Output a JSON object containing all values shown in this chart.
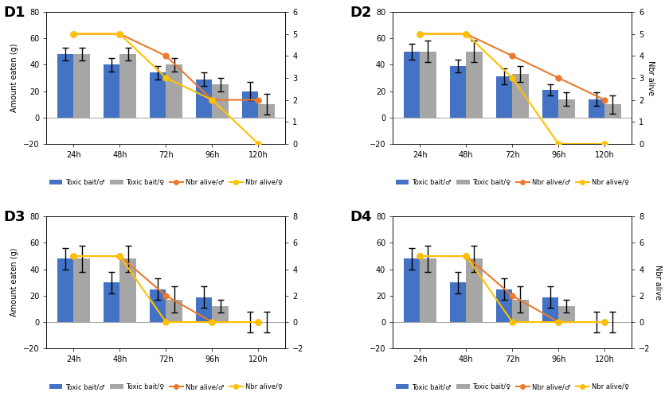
{
  "panels": [
    {
      "label": "D1",
      "xlabels": [
        "24h",
        "48h",
        "72h",
        "96h",
        "120h"
      ],
      "blue_bars": [
        48,
        40,
        34,
        29,
        20
      ],
      "blue_err": [
        5,
        5,
        5,
        5,
        7
      ],
      "gray_bars": [
        48,
        48,
        40,
        25,
        10
      ],
      "gray_err": [
        5,
        5,
        5,
        5,
        8
      ],
      "orange_line": [
        5,
        5,
        4,
        2,
        2
      ],
      "yellow_line": [
        5,
        5,
        3,
        2,
        0
      ],
      "ylim_left": [
        -20,
        80
      ],
      "ylim_right": [
        0,
        6
      ],
      "yticks_right": [
        0,
        1,
        2,
        3,
        4,
        5,
        6
      ],
      "yticks_left": [
        -20,
        0,
        20,
        40,
        60,
        80
      ]
    },
    {
      "label": "D2",
      "xlabels": [
        "24h",
        "48h",
        "72h",
        "96h",
        "120h"
      ],
      "blue_bars": [
        50,
        39,
        31,
        21,
        14
      ],
      "blue_err": [
        6,
        5,
        6,
        4,
        5
      ],
      "gray_bars": [
        50,
        50,
        33,
        14,
        10
      ],
      "gray_err": [
        8,
        8,
        6,
        5,
        7
      ],
      "orange_line": [
        5,
        5,
        4,
        3,
        2
      ],
      "yellow_line": [
        5,
        5,
        3,
        0,
        0
      ],
      "ylim_left": [
        -20,
        80
      ],
      "ylim_right": [
        0,
        6
      ],
      "yticks_right": [
        0,
        1,
        2,
        3,
        4,
        5,
        6
      ],
      "yticks_left": [
        -20,
        0,
        20,
        40,
        60,
        80
      ]
    },
    {
      "label": "D3",
      "xlabels": [
        "24h",
        "48h",
        "72h",
        "96h",
        "120h"
      ],
      "blue_bars": [
        48,
        30,
        25,
        19,
        0
      ],
      "blue_err": [
        8,
        8,
        8,
        8,
        8
      ],
      "gray_bars": [
        48,
        48,
        17,
        12,
        0
      ],
      "gray_err": [
        10,
        10,
        10,
        5,
        8
      ],
      "orange_line": [
        5,
        5,
        2,
        0,
        0
      ],
      "yellow_line": [
        5,
        5,
        0,
        0,
        0
      ],
      "ylim_left": [
        -20,
        80
      ],
      "ylim_right": [
        -2,
        8
      ],
      "yticks_right": [
        -2,
        0,
        2,
        4,
        6,
        8
      ],
      "yticks_left": [
        -20,
        0,
        20,
        40,
        60,
        80
      ]
    },
    {
      "label": "D4",
      "xlabels": [
        "24h",
        "48h",
        "72h",
        "96h",
        "120h"
      ],
      "blue_bars": [
        48,
        30,
        25,
        19,
        0
      ],
      "blue_err": [
        8,
        8,
        8,
        8,
        8
      ],
      "gray_bars": [
        48,
        48,
        17,
        12,
        0
      ],
      "gray_err": [
        10,
        10,
        10,
        5,
        8
      ],
      "orange_line": [
        5,
        5,
        2,
        0,
        0
      ],
      "yellow_line": [
        5,
        5,
        0,
        0,
        0
      ],
      "ylim_left": [
        -20,
        80
      ],
      "ylim_right": [
        -2,
        8
      ],
      "yticks_right": [
        -2,
        0,
        2,
        4,
        6,
        8
      ],
      "yticks_left": [
        -20,
        0,
        20,
        40,
        60,
        80
      ]
    }
  ],
  "blue_color": "#4472C4",
  "gray_color": "#A6A6A6",
  "orange_color": "#E97A2F",
  "yellow_color": "#FFC000",
  "bar_width": 0.35,
  "legend_labels": [
    "Toxic bait/♂",
    "Toxic bait/♀",
    "Nbr alive/♂",
    "Nbr alive/♀"
  ],
  "ylabel_left": "Amount eaten (g)",
  "ylabel_right": "Nbr alive"
}
